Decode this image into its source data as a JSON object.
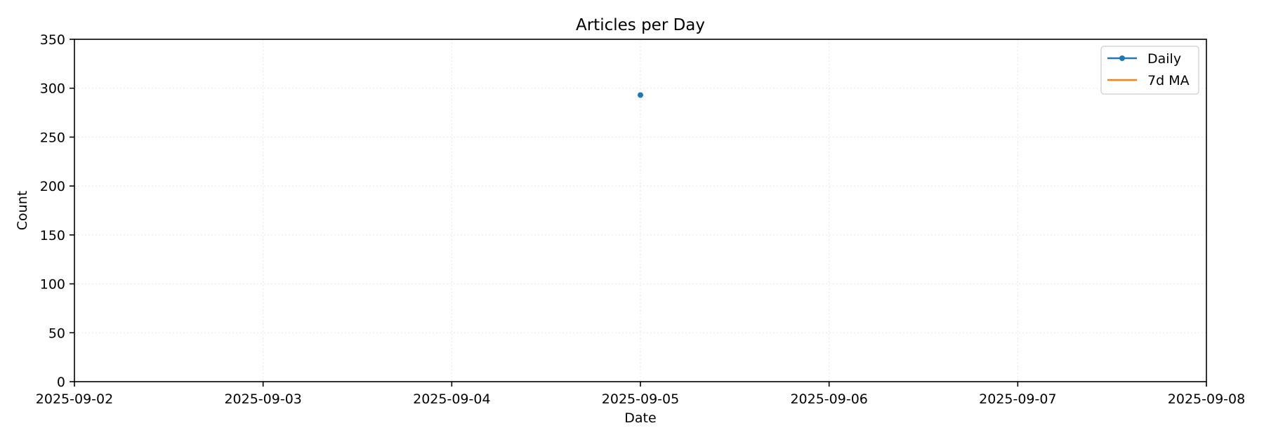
{
  "chart_data": {
    "type": "line",
    "title": "Articles per Day",
    "xlabel": "Date",
    "ylabel": "Count",
    "x_ticks": [
      "2025-09-02",
      "2025-09-03",
      "2025-09-04",
      "2025-09-05",
      "2025-09-06",
      "2025-09-07",
      "2025-09-08"
    ],
    "xlim": [
      "2025-09-02",
      "2025-09-08"
    ],
    "ylim": [
      0,
      350
    ],
    "y_ticks": [
      0,
      50,
      100,
      150,
      200,
      250,
      300,
      350
    ],
    "grid": true,
    "legend_position": "top-right",
    "series": [
      {
        "name": "Daily",
        "color": "#1f77b4",
        "marker": "circle",
        "points": [
          {
            "x": "2025-09-05",
            "y": 293
          }
        ]
      },
      {
        "name": "7d MA",
        "color": "#ff7f0e",
        "marker": "none",
        "points": []
      }
    ]
  }
}
